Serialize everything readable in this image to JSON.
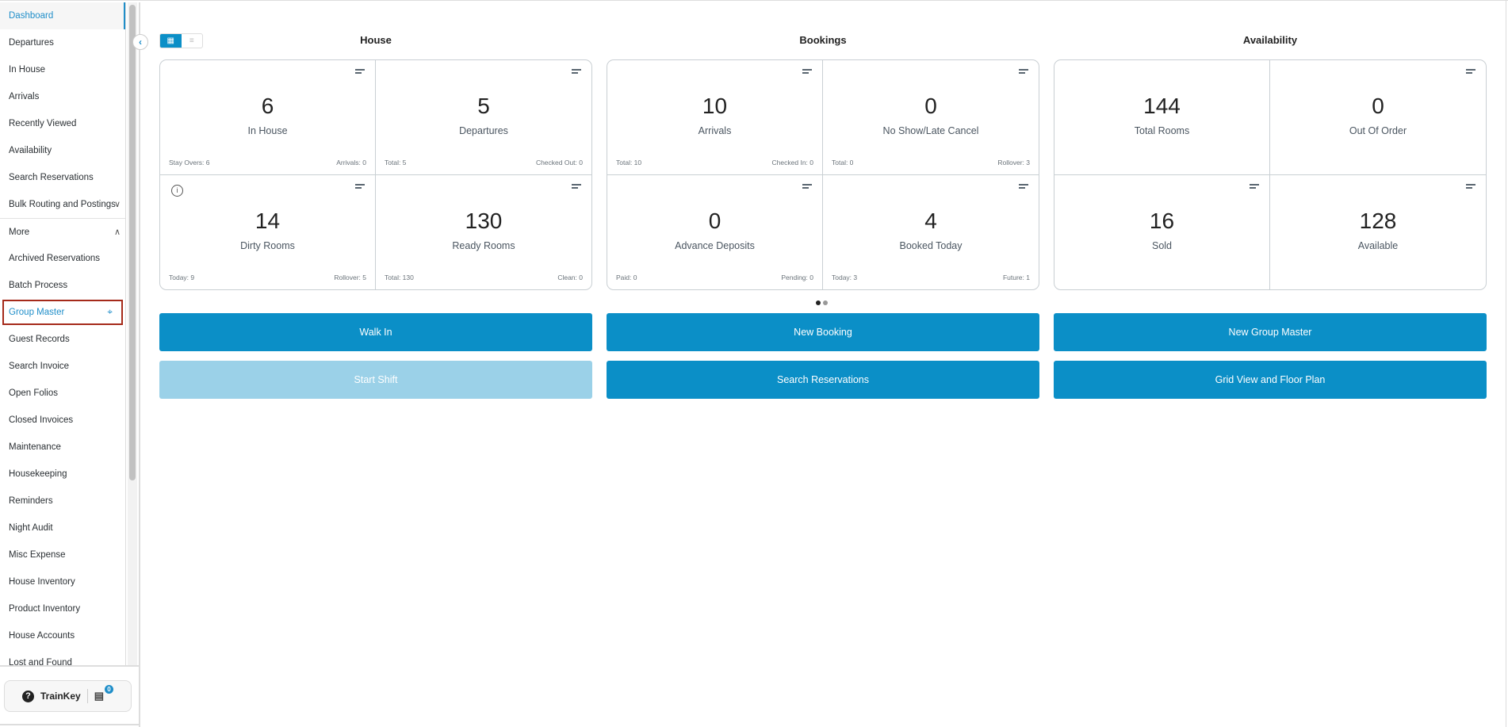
{
  "sidebar": {
    "items": [
      {
        "label": "Dashboard"
      },
      {
        "label": "Departures"
      },
      {
        "label": "In House"
      },
      {
        "label": "Arrivals"
      },
      {
        "label": "Recently Viewed"
      },
      {
        "label": "Availability"
      },
      {
        "label": "Search Reservations"
      },
      {
        "label": "Bulk Routing and Postings"
      },
      {
        "label": "More"
      },
      {
        "label": "Archived Reservations"
      },
      {
        "label": "Batch Process"
      },
      {
        "label": "Group Master"
      },
      {
        "label": "Guest Records"
      },
      {
        "label": "Search Invoice"
      },
      {
        "label": "Open Folios"
      },
      {
        "label": "Closed Invoices"
      },
      {
        "label": "Maintenance"
      },
      {
        "label": "Housekeeping"
      },
      {
        "label": "Reminders"
      },
      {
        "label": "Night Audit"
      },
      {
        "label": "Misc Expense"
      },
      {
        "label": "House Inventory"
      },
      {
        "label": "Product Inventory"
      },
      {
        "label": "House Accounts"
      },
      {
        "label": "Lost and Found"
      }
    ],
    "trainkey": {
      "label": "TrainKey",
      "badge": "0"
    }
  },
  "sections": [
    {
      "title": "House",
      "cells": [
        {
          "value": "6",
          "label": "In House",
          "left": "Stay Overs: 6",
          "right": "Arrivals: 0"
        },
        {
          "value": "5",
          "label": "Departures",
          "left": "Total: 5",
          "right": "Checked Out: 0"
        },
        {
          "value": "14",
          "label": "Dirty Rooms",
          "left": "Today: 9",
          "right": "Rollover: 5"
        },
        {
          "value": "130",
          "label": "Ready Rooms",
          "left": "Total: 130",
          "right": "Clean: 0"
        }
      ]
    },
    {
      "title": "Bookings",
      "cells": [
        {
          "value": "10",
          "label": "Arrivals",
          "left": "Total: 10",
          "right": "Checked In: 0"
        },
        {
          "value": "0",
          "label": "No Show/Late Cancel",
          "left": "Total: 0",
          "right": "Rollover: 3"
        },
        {
          "value": "0",
          "label": "Advance Deposits",
          "left": "Paid: 0",
          "right": "Pending: 0"
        },
        {
          "value": "4",
          "label": "Booked Today",
          "left": "Today: 3",
          "right": "Future: 1"
        }
      ]
    },
    {
      "title": "Availability",
      "cells": [
        {
          "value": "144",
          "label": "Total Rooms"
        },
        {
          "value": "0",
          "label": "Out Of Order"
        },
        {
          "value": "16",
          "label": "Sold"
        },
        {
          "value": "128",
          "label": "Available"
        }
      ]
    }
  ],
  "buttons": [
    {
      "label": "Walk In"
    },
    {
      "label": "New Booking"
    },
    {
      "label": "New Group Master"
    },
    {
      "label": "Start Shift",
      "disabled": true
    },
    {
      "label": "Search Reservations"
    },
    {
      "label": "Grid View and Floor Plan"
    }
  ],
  "colors": {
    "accent": "#0b8fc7",
    "disabled": "#9bd1e8",
    "highlight": "#a52a1a"
  }
}
